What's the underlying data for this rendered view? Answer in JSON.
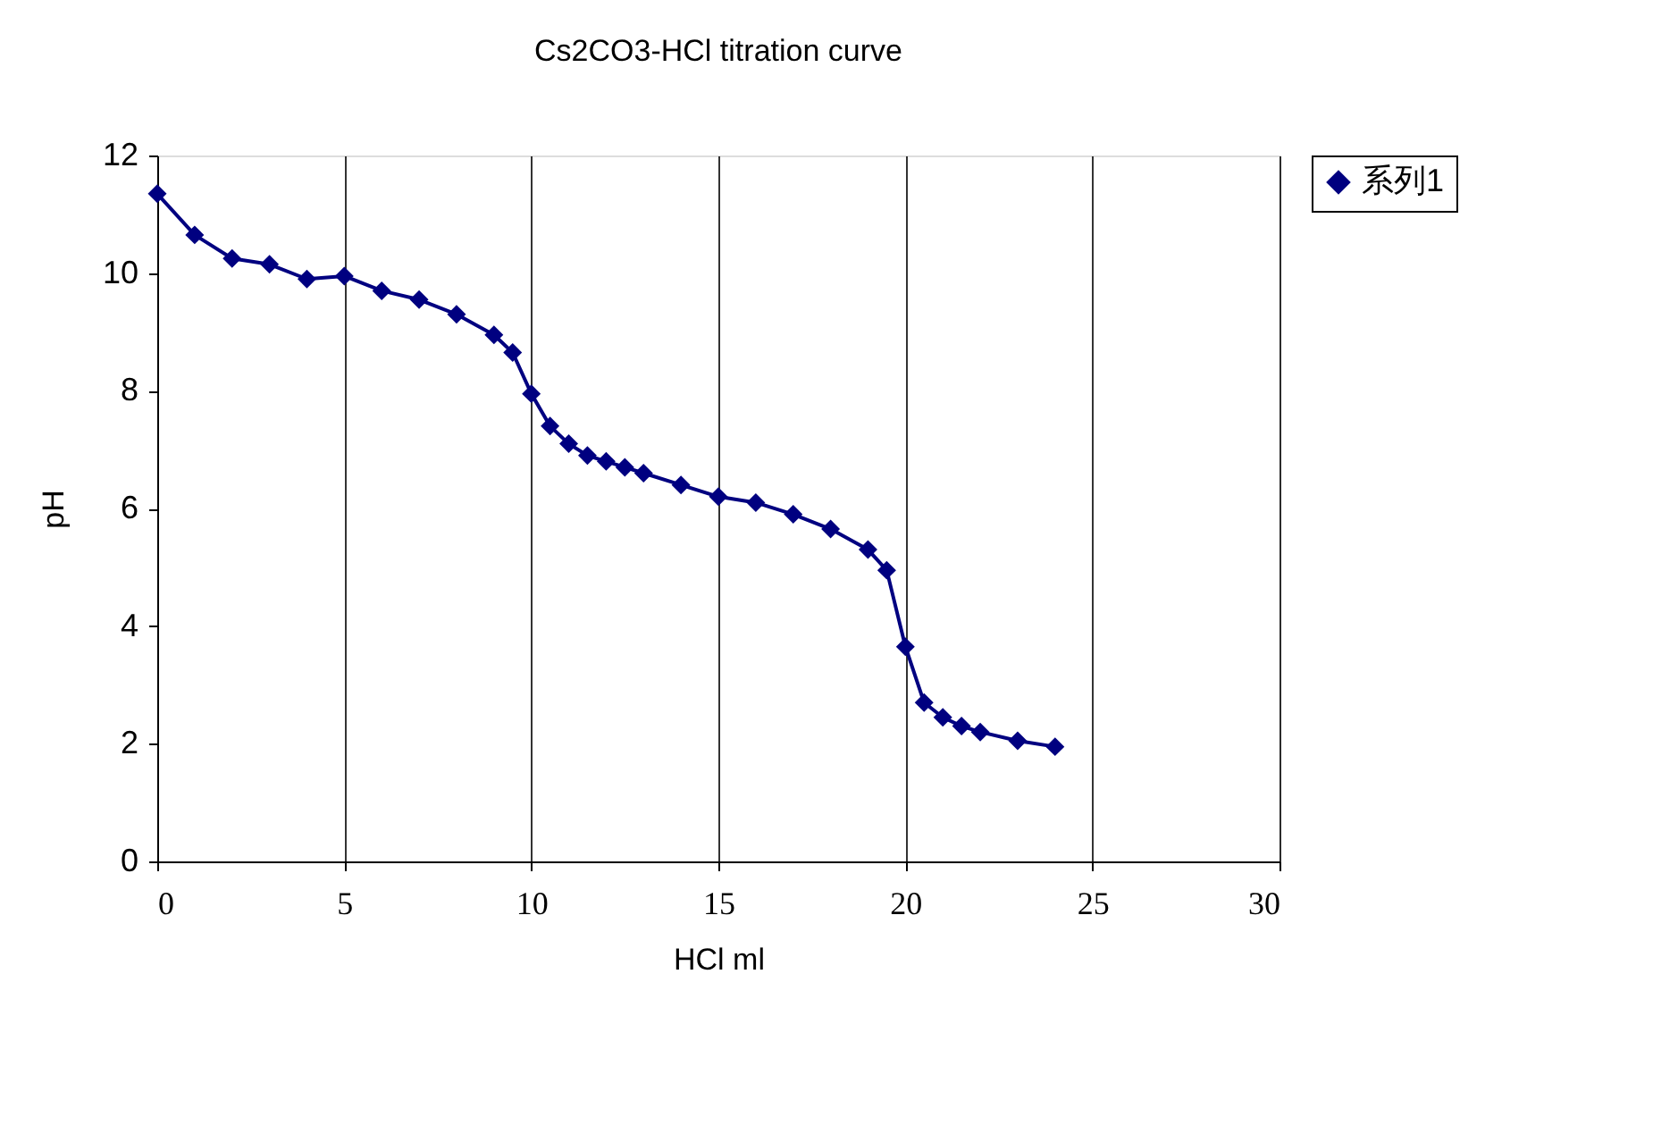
{
  "chart_data": {
    "type": "line",
    "title": "Cs2CO3-HCl titration curve",
    "xlabel": "HCl ml",
    "ylabel": "pH",
    "x": [
      0,
      1,
      2,
      3,
      4,
      5,
      6,
      7,
      8,
      9,
      9.5,
      10,
      10.5,
      11,
      11.5,
      12,
      12.5,
      13,
      14,
      15,
      16,
      17,
      18,
      19,
      19.5,
      20,
      20.5,
      21,
      21.5,
      22,
      23,
      24
    ],
    "series": [
      {
        "name": "系列1",
        "color": "#000080",
        "values": [
          11.35,
          10.65,
          10.25,
          10.15,
          9.9,
          9.95,
          9.7,
          9.55,
          9.3,
          8.95,
          8.65,
          7.95,
          7.4,
          7.1,
          6.9,
          6.8,
          6.7,
          6.6,
          6.4,
          6.2,
          6.1,
          5.9,
          5.65,
          5.3,
          4.95,
          3.65,
          2.7,
          2.45,
          2.3,
          2.2,
          2.05,
          1.95
        ]
      }
    ],
    "xlim": [
      0,
      30
    ],
    "xticks": [
      0,
      5,
      10,
      15,
      20,
      25,
      30
    ],
    "ylim": [
      0,
      12
    ],
    "yticks": [
      0,
      2,
      4,
      6,
      8,
      10,
      12
    ],
    "grid": "x",
    "legend": "right",
    "marker": "diamond",
    "line_style": "solid"
  }
}
